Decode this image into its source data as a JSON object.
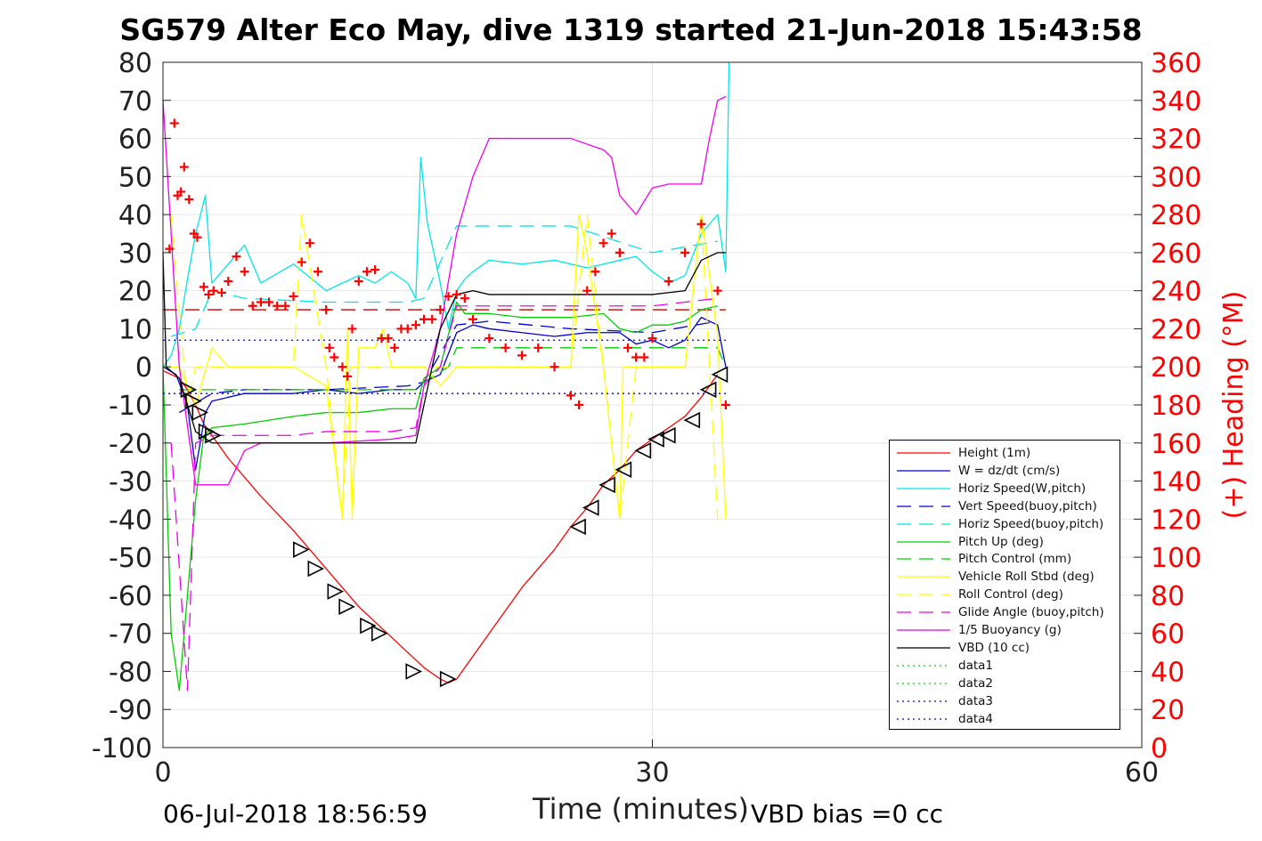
{
  "chart_data": {
    "type": "line",
    "title": "SG579 Alter Eco May, dive 1319 started 21-Jun-2018 15:43:58",
    "xlabel": "Time (minutes)",
    "ylabel_right": "(+) Heading (°M)",
    "xlim": [
      0,
      60
    ],
    "ylim": [
      -100,
      80
    ],
    "ylim_right": [
      0,
      360
    ],
    "xticks": [
      "0",
      "30",
      "60"
    ],
    "yticks": [
      "80",
      "70",
      "60",
      "50",
      "40",
      "30",
      "20",
      "10",
      "0",
      "-10",
      "-20",
      "-30",
      "-40",
      "-50",
      "-60",
      "-70",
      "-80",
      "-90",
      "-100"
    ],
    "yticks_right": [
      "360",
      "340",
      "320",
      "300",
      "280",
      "260",
      "240",
      "220",
      "200",
      "180",
      "160",
      "140",
      "120",
      "100",
      "80",
      "60",
      "40",
      "20",
      "0"
    ],
    "footer_left": "06-Jul-2018 18:56:59",
    "footer_right": "VBD bias =0 cc",
    "grid": true,
    "legend_position": "lower-right",
    "series": [
      {
        "name": "Height (1m)",
        "color": "#ff0000",
        "style": "solid",
        "x": [
          0,
          0.5,
          1,
          1.5,
          2,
          2.5,
          3,
          4,
          6,
          8,
          9,
          10,
          11,
          12,
          13,
          14,
          15,
          16,
          17,
          17.5,
          18,
          19,
          20,
          22,
          24,
          25,
          26,
          27,
          28,
          29,
          30,
          31,
          32,
          33,
          34
        ],
        "y": [
          -1,
          -2,
          -3,
          -6,
          -10,
          -15,
          -18,
          -24,
          -34,
          -43,
          -48,
          -53,
          -58,
          -63,
          -67,
          -71,
          -75,
          -79,
          -82,
          -83,
          -82,
          -76,
          -70,
          -58,
          -48,
          -42,
          -37,
          -31,
          -27,
          -22,
          -19,
          -16,
          -13,
          -8,
          -2
        ]
      },
      {
        "name": "W = dz/dt (cm/s)",
        "color": "#0000cc",
        "style": "solid",
        "x": [
          0,
          0.8,
          1.5,
          2,
          2.6,
          3,
          5,
          8,
          10,
          12,
          14,
          15.5,
          16,
          17,
          18,
          19,
          20,
          22,
          24,
          26,
          28,
          29,
          30,
          31,
          32,
          33,
          34,
          34.5
        ],
        "y": [
          0,
          -2,
          -10,
          -27,
          -12,
          -9,
          -7,
          -7,
          -6,
          -7,
          -6,
          -6,
          -4,
          -2,
          9,
          11,
          10,
          9,
          8,
          9,
          9,
          6,
          7,
          5,
          7,
          13,
          11,
          0
        ]
      },
      {
        "name": "Horiz Speed(W,pitch)",
        "color": "#00e5e5",
        "style": "solid",
        "x": [
          0,
          0.5,
          1,
          1.5,
          2,
          2.3,
          2.6,
          3,
          4,
          5,
          6,
          8,
          10,
          12,
          13,
          14,
          15,
          15.5,
          15.8,
          16.2,
          17,
          17.5,
          18,
          18.5,
          19,
          20,
          22,
          24,
          26,
          28,
          29,
          30,
          31,
          32,
          33,
          34,
          34.5,
          34.7
        ],
        "y": [
          0,
          3,
          10,
          23,
          35,
          40,
          45,
          22,
          27,
          32,
          22,
          27,
          20,
          24,
          22,
          25,
          22,
          18,
          55,
          38,
          22,
          10,
          20,
          23,
          25,
          28,
          27,
          28,
          26,
          28,
          29,
          25,
          22,
          24,
          35,
          40,
          25,
          80
        ]
      },
      {
        "name": "Vert Speed(buoy,pitch)",
        "color": "#0000cc",
        "style": "dashed",
        "x": [
          1,
          3,
          5,
          10,
          15,
          16,
          18,
          20,
          25,
          30,
          34
        ],
        "y": [
          -12,
          -7,
          -6,
          -6,
          -5,
          -4,
          11,
          12,
          10,
          9,
          12
        ]
      },
      {
        "name": "Horiz Speed(buoy,pitch)",
        "color": "#00e5e5",
        "style": "dashed",
        "x": [
          0.5,
          2,
          3,
          5,
          10,
          15,
          16,
          18,
          20,
          25,
          30,
          34
        ],
        "y": [
          8,
          10,
          20,
          18,
          17,
          17,
          18,
          37,
          37,
          37,
          30,
          33
        ]
      },
      {
        "name": "Pitch Up (deg)",
        "color": "#00cc00",
        "style": "solid",
        "x": [
          0,
          0.5,
          1,
          1.5,
          2,
          2.5,
          3,
          5,
          8,
          10,
          12,
          14,
          15.5,
          16,
          17,
          18,
          18.5,
          19,
          20,
          22,
          25,
          27,
          28,
          29,
          30,
          31,
          32,
          33,
          34
        ],
        "y": [
          0,
          -70,
          -85,
          -60,
          -35,
          -18,
          -16,
          -15,
          -13,
          -12,
          -12,
          -11,
          -11,
          -3,
          0,
          17,
          14,
          14,
          14,
          13,
          13,
          14,
          10,
          9,
          11,
          11,
          12,
          15,
          16
        ]
      },
      {
        "name": "Pitch Control (mm)",
        "color": "#00cc00",
        "style": "dashed",
        "x": [
          1,
          2,
          15.5,
          16,
          17.5,
          18,
          34,
          34.5
        ],
        "y": [
          -6,
          -6,
          -6,
          -4,
          0,
          5,
          5,
          0
        ]
      },
      {
        "name": "Vehicle Roll Stbd (deg)",
        "color": "#ffff00",
        "style": "solid",
        "x": [
          0,
          1,
          2,
          3,
          4,
          6,
          8,
          10,
          11,
          11.3,
          11.6,
          12,
          13,
          13.5,
          14,
          15,
          16,
          17,
          18,
          20,
          25,
          25.5,
          26,
          27,
          28,
          28.2,
          28.5,
          29,
          30,
          31,
          32,
          33,
          34,
          34.5
        ],
        "y": [
          0,
          0,
          -10,
          5,
          0,
          0,
          0,
          -5,
          -40,
          10,
          -40,
          5,
          5,
          10,
          0,
          0,
          0,
          -5,
          0,
          0,
          0,
          40,
          30,
          0,
          -40,
          0,
          0,
          0,
          0,
          0,
          0,
          40,
          8,
          -40
        ]
      },
      {
        "name": "Roll Control (deg)",
        "color": "#ffff00",
        "style": "dashed",
        "x": [
          0.5,
          1.5,
          2,
          8,
          8.5,
          10,
          11,
          11.5,
          12,
          14,
          16,
          18,
          25,
          26,
          27,
          28,
          29,
          30,
          31,
          32,
          33,
          34
        ],
        "y": [
          40,
          -10,
          0,
          0,
          40,
          0,
          -40,
          0,
          0,
          0,
          0,
          0,
          0,
          40,
          0,
          -40,
          0,
          0,
          0,
          0,
          40,
          -40
        ]
      },
      {
        "name": "Glide Angle (buoy,pitch)",
        "color": "#ee00ee",
        "style": "dashed",
        "x": [
          0.5,
          1.5,
          2,
          3,
          5,
          8,
          10,
          12,
          14,
          15.5,
          16,
          17,
          18,
          20,
          25,
          30,
          34
        ],
        "y": [
          -20,
          -85,
          -20,
          -18,
          -18,
          -18,
          -17,
          -17,
          -17,
          -16,
          -5,
          0,
          16,
          16,
          16,
          16,
          18
        ]
      },
      {
        "name": "1/5 Buoyancy (g)",
        "color": "#ee00ee",
        "style": "solid",
        "x": [
          0,
          1,
          2,
          3,
          4,
          5,
          6,
          10,
          14,
          15.5,
          16,
          17,
          18,
          19,
          20,
          25,
          27,
          27.5,
          28,
          29,
          30,
          31,
          32,
          33,
          33.5,
          34,
          34.5
        ],
        "y": [
          70,
          0,
          -31,
          -31,
          -31,
          -22,
          -20,
          -20,
          -19,
          -18,
          -5,
          10,
          35,
          50,
          60,
          60,
          57,
          55,
          45,
          40,
          47,
          48,
          48,
          48,
          60,
          70,
          71
        ]
      },
      {
        "name": "VBD (10 cc)",
        "color": "#000000",
        "style": "solid",
        "x": [
          0,
          0.2,
          1,
          1.5,
          2,
          3,
          5,
          10,
          15,
          15.5,
          17,
          18,
          19,
          20,
          25,
          30,
          32,
          33,
          34,
          34.5
        ],
        "y": [
          30,
          0,
          -3,
          -10,
          -17,
          -20,
          -20,
          -20,
          -20,
          -20,
          10,
          19,
          20,
          19,
          19,
          19,
          20,
          28,
          30,
          30
        ]
      },
      {
        "name": "data1",
        "color": "#00cc00",
        "style": "dotted",
        "x": [],
        "y": []
      },
      {
        "name": "data2",
        "color": "#00cc00",
        "style": "dotted",
        "x": [],
        "y": []
      },
      {
        "name": "data3",
        "color": "#0000cc",
        "style": "dotted",
        "x": [
          0,
          34.5
        ],
        "y": [
          7,
          7
        ]
      },
      {
        "name": "data4",
        "color": "#0000cc",
        "style": "dotted",
        "x": [
          0,
          34.5
        ],
        "y": [
          -7,
          -7
        ]
      }
    ],
    "reference_lines": [
      {
        "color": "#cc0000",
        "style": "dashed",
        "x": [
          0,
          34.5
        ],
        "y": [
          15,
          15
        ]
      }
    ],
    "heading_points": {
      "color": "#ff0000",
      "marker": "+",
      "x": [
        0.4,
        0.7,
        0.9,
        1.1,
        1.3,
        1.6,
        1.9,
        2.1,
        2.5,
        2.8,
        3.1,
        3.6,
        4,
        4.5,
        5,
        5.5,
        6,
        6.5,
        7,
        7.5,
        8,
        8.5,
        9,
        9.5,
        10,
        10.2,
        10.5,
        11,
        11.3,
        11.6,
        12,
        12.5,
        13,
        13.4,
        13.8,
        14.2,
        14.6,
        15,
        15.5,
        16,
        16.5,
        17,
        17.5,
        18,
        18.5,
        19,
        20,
        21,
        22,
        23,
        24,
        25,
        25.5,
        26,
        26.5,
        27,
        27.5,
        28,
        28.5,
        29,
        29.5,
        30,
        31,
        32,
        33,
        34,
        34.5
      ],
      "y": [
        262,
        328,
        290,
        292,
        305,
        288,
        270,
        268,
        242,
        238,
        240,
        239,
        245,
        258,
        250,
        232,
        234,
        234,
        232,
        232,
        237,
        255,
        265,
        250,
        230,
        210,
        205,
        200,
        195,
        220,
        245,
        250,
        251,
        215,
        215,
        210,
        220,
        220,
        222,
        225,
        225,
        230,
        237,
        238,
        236,
        225,
        215,
        210,
        206,
        210,
        200,
        185,
        180,
        240,
        250,
        265,
        270,
        260,
        210,
        205,
        205,
        215,
        245,
        260,
        275,
        240,
        180
      ]
    },
    "depth_markers": {
      "color": "#000000",
      "marker": "triangle",
      "x": [
        1.5,
        1.8,
        2.2,
        2.6,
        3,
        8.4,
        9.3,
        10.5,
        11.2,
        12.5,
        13.2,
        15.3,
        17.4,
        25.5,
        26.3,
        27.3,
        28.3,
        29.5,
        30.3,
        31,
        32.5,
        33.5,
        34.2
      ],
      "y": [
        -6,
        -9,
        -12,
        -17,
        -18,
        -48,
        -53,
        -59,
        -63,
        -68,
        -70,
        -80,
        -82,
        -42,
        -37,
        -31,
        -27,
        -22,
        -19,
        -18,
        -14,
        -6,
        -2
      ]
    }
  }
}
